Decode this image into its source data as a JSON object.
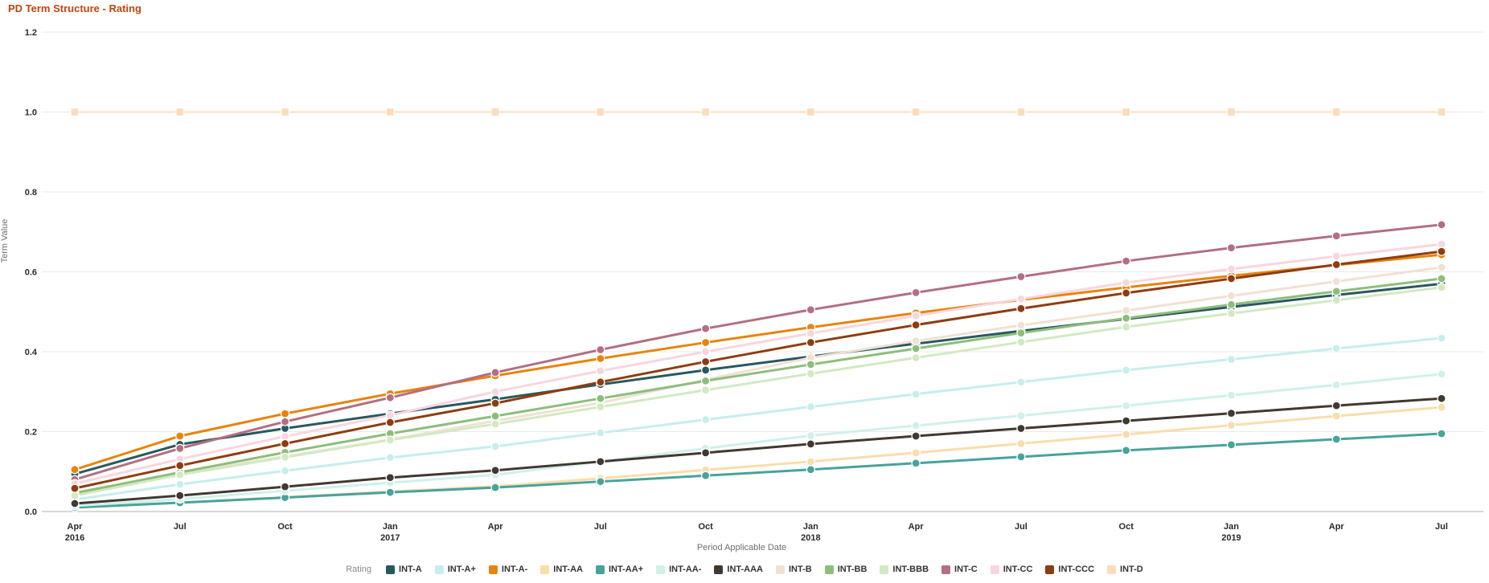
{
  "title": "PD Term Structure - Rating",
  "chart_data": {
    "type": "line",
    "title": "PD Term Structure - Rating",
    "xlabel": "Period Applicable Date",
    "ylabel": "Term Value",
    "ylim": [
      0.0,
      1.2
    ],
    "yticks": [
      0.0,
      0.2,
      0.4,
      0.6,
      0.8,
      1.0,
      1.2
    ],
    "grid": "horizontal",
    "legend_title": "Rating",
    "legend_position": "bottom",
    "categories": [
      "Apr 2016",
      "Jul 2016",
      "Oct 2016",
      "Jan 2017",
      "Apr 2017",
      "Jul 2017",
      "Oct 2017",
      "Jan 2018",
      "Apr 2018",
      "Jul 2018",
      "Oct 2018",
      "Jan 2019",
      "Apr 2019",
      "Jul 2019"
    ],
    "x_ticks": [
      {
        "month": "Apr",
        "year": "2016"
      },
      {
        "month": "Jul",
        "year": ""
      },
      {
        "month": "Oct",
        "year": ""
      },
      {
        "month": "Jan",
        "year": "2017"
      },
      {
        "month": "Apr",
        "year": ""
      },
      {
        "month": "Jul",
        "year": ""
      },
      {
        "month": "Oct",
        "year": ""
      },
      {
        "month": "Jan",
        "year": "2018"
      },
      {
        "month": "Apr",
        "year": ""
      },
      {
        "month": "Jul",
        "year": ""
      },
      {
        "month": "Oct",
        "year": ""
      },
      {
        "month": "Jan",
        "year": "2019"
      },
      {
        "month": "Apr",
        "year": ""
      },
      {
        "month": "Jul",
        "year": ""
      }
    ],
    "series": [
      {
        "name": "INT-A",
        "color": "#28595e",
        "marker": "circle",
        "values": [
          0.094,
          0.168,
          0.208,
          0.245,
          0.281,
          0.318,
          0.354,
          0.388,
          0.42,
          0.452,
          0.482,
          0.512,
          0.542,
          0.57
        ]
      },
      {
        "name": "INT-A+",
        "color": "#c6eeec",
        "marker": "circle",
        "values": [
          0.03,
          0.068,
          0.102,
          0.135,
          0.163,
          0.197,
          0.23,
          0.262,
          0.294,
          0.324,
          0.354,
          0.381,
          0.408,
          0.434
        ]
      },
      {
        "name": "INT-A-",
        "color": "#e8840c",
        "marker": "circle",
        "values": [
          0.105,
          0.189,
          0.245,
          0.295,
          0.34,
          0.383,
          0.423,
          0.461,
          0.497,
          0.53,
          0.561,
          0.59,
          0.617,
          0.643
        ]
      },
      {
        "name": "INT-AA",
        "color": "#faddab",
        "marker": "circle",
        "values": [
          0.012,
          0.022,
          0.036,
          0.05,
          0.063,
          0.083,
          0.104,
          0.125,
          0.147,
          0.17,
          0.193,
          0.216,
          0.239,
          0.261
        ]
      },
      {
        "name": "INT-AA+",
        "color": "#48a39b",
        "marker": "circle",
        "values": [
          0.01,
          0.022,
          0.035,
          0.048,
          0.06,
          0.075,
          0.09,
          0.105,
          0.121,
          0.137,
          0.153,
          0.167,
          0.181,
          0.195
        ]
      },
      {
        "name": "INT-AA-",
        "color": "#cff1ea",
        "marker": "circle",
        "values": [
          0.014,
          0.031,
          0.052,
          0.072,
          0.092,
          0.125,
          0.158,
          0.19,
          0.215,
          0.24,
          0.265,
          0.291,
          0.317,
          0.344
        ]
      },
      {
        "name": "INT-AAA",
        "color": "#413830",
        "marker": "circle",
        "values": [
          0.02,
          0.04,
          0.062,
          0.085,
          0.103,
          0.125,
          0.147,
          0.169,
          0.189,
          0.208,
          0.227,
          0.246,
          0.265,
          0.283
        ]
      },
      {
        "name": "INT-B",
        "color": "#f0e1d3",
        "marker": "circle",
        "values": [
          0.048,
          0.095,
          0.138,
          0.18,
          0.227,
          0.272,
          0.33,
          0.385,
          0.427,
          0.466,
          0.503,
          0.54,
          0.576,
          0.611
        ]
      },
      {
        "name": "INT-BB",
        "color": "#8cbe7b",
        "marker": "circle",
        "values": [
          0.046,
          0.098,
          0.148,
          0.195,
          0.239,
          0.283,
          0.327,
          0.368,
          0.408,
          0.447,
          0.484,
          0.518,
          0.551,
          0.583
        ]
      },
      {
        "name": "INT-BBB",
        "color": "#d2e9c2",
        "marker": "circle",
        "values": [
          0.04,
          0.092,
          0.136,
          0.179,
          0.219,
          0.262,
          0.304,
          0.345,
          0.385,
          0.424,
          0.462,
          0.496,
          0.529,
          0.561
        ]
      },
      {
        "name": "INT-C",
        "color": "#b36f81",
        "marker": "circle",
        "values": [
          0.08,
          0.158,
          0.225,
          0.285,
          0.348,
          0.405,
          0.458,
          0.505,
          0.548,
          0.588,
          0.627,
          0.66,
          0.69,
          0.718
        ]
      },
      {
        "name": "INT-CC",
        "color": "#f8d6de",
        "marker": "circle",
        "values": [
          0.07,
          0.131,
          0.188,
          0.241,
          0.3,
          0.352,
          0.4,
          0.446,
          0.49,
          0.532,
          0.573,
          0.607,
          0.639,
          0.669
        ]
      },
      {
        "name": "INT-CCC",
        "color": "#8e3d11",
        "marker": "circle",
        "values": [
          0.058,
          0.115,
          0.17,
          0.223,
          0.271,
          0.324,
          0.375,
          0.423,
          0.467,
          0.508,
          0.547,
          0.583,
          0.618,
          0.651
        ]
      },
      {
        "name": "INT-D",
        "color": "#fbdcbb",
        "marker": "square",
        "values": [
          1.0,
          1.0,
          1.0,
          1.0,
          1.0,
          1.0,
          1.0,
          1.0,
          1.0,
          1.0,
          1.0,
          1.0,
          1.0,
          1.0
        ]
      }
    ]
  }
}
